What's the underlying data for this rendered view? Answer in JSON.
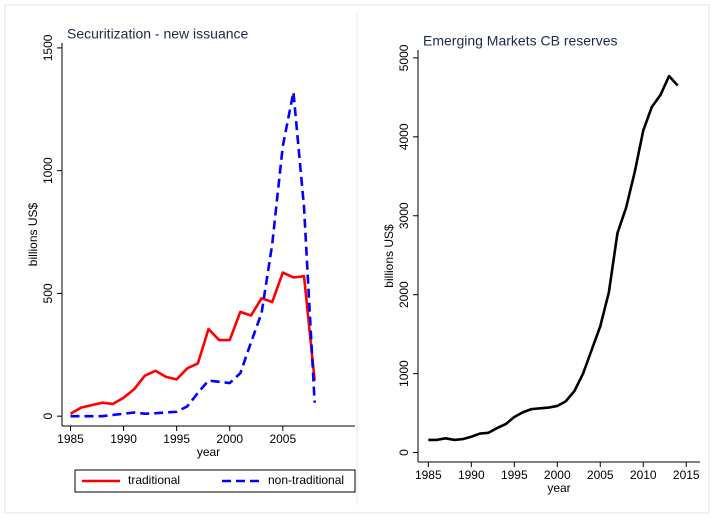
{
  "chart_data": [
    {
      "type": "line",
      "title": "Securitization - new issuance",
      "xlabel": "year",
      "ylabel": "billions US$",
      "xlim": [
        1984.2,
        2011.8
      ],
      "xticks": [
        1985,
        1990,
        1995,
        2000,
        2005
      ],
      "ylim": [
        -40,
        1520
      ],
      "yticks": [
        0,
        500,
        1000,
        1500
      ],
      "x": [
        1985,
        1986,
        1987,
        1988,
        1989,
        1990,
        1991,
        1992,
        1993,
        1994,
        1995,
        1996,
        1997,
        1998,
        1999,
        2000,
        2001,
        2002,
        2003,
        2004,
        2005,
        2006,
        2007,
        2008
      ],
      "series": [
        {
          "name": "traditional",
          "color": "#ff0000",
          "dash": false,
          "values": [
            10,
            35,
            45,
            55,
            50,
            75,
            110,
            165,
            185,
            160,
            150,
            195,
            215,
            355,
            310,
            310,
            425,
            410,
            480,
            465,
            585,
            565,
            570,
            145
          ]
        },
        {
          "name": "non-traditional",
          "color": "#0000ff",
          "dash": true,
          "values": [
            0,
            0,
            0,
            0,
            5,
            10,
            15,
            10,
            12,
            15,
            18,
            40,
            95,
            145,
            140,
            135,
            175,
            300,
            420,
            700,
            1100,
            1320,
            850,
            55
          ]
        }
      ],
      "legend": "bottom"
    },
    {
      "type": "line",
      "title": "Emerging Markets CB reserves",
      "xlabel": "year",
      "ylabel": "billions US$",
      "xlim": [
        1983.8,
        2016.6
      ],
      "xticks": [
        1985,
        1990,
        1995,
        2000,
        2005,
        2010,
        2015
      ],
      "ylim": [
        -120,
        5100
      ],
      "yticks": [
        0,
        1000,
        2000,
        3000,
        4000,
        5000
      ],
      "x": [
        1985,
        1986,
        1987,
        1988,
        1989,
        1990,
        1991,
        1992,
        1993,
        1994,
        1995,
        1996,
        1997,
        1998,
        1999,
        2000,
        2001,
        2002,
        2003,
        2004,
        2005,
        2006,
        2007,
        2008,
        2009,
        2010,
        2011,
        2012,
        2013,
        2014
      ],
      "series": [
        {
          "color": "#000000",
          "dash": false,
          "values": [
            160,
            160,
            180,
            160,
            170,
            200,
            240,
            250,
            310,
            360,
            450,
            510,
            550,
            560,
            570,
            590,
            650,
            780,
            1000,
            1300,
            1600,
            2030,
            2780,
            3100,
            3550,
            4080,
            4380,
            4530,
            4770,
            4650
          ]
        }
      ]
    }
  ]
}
